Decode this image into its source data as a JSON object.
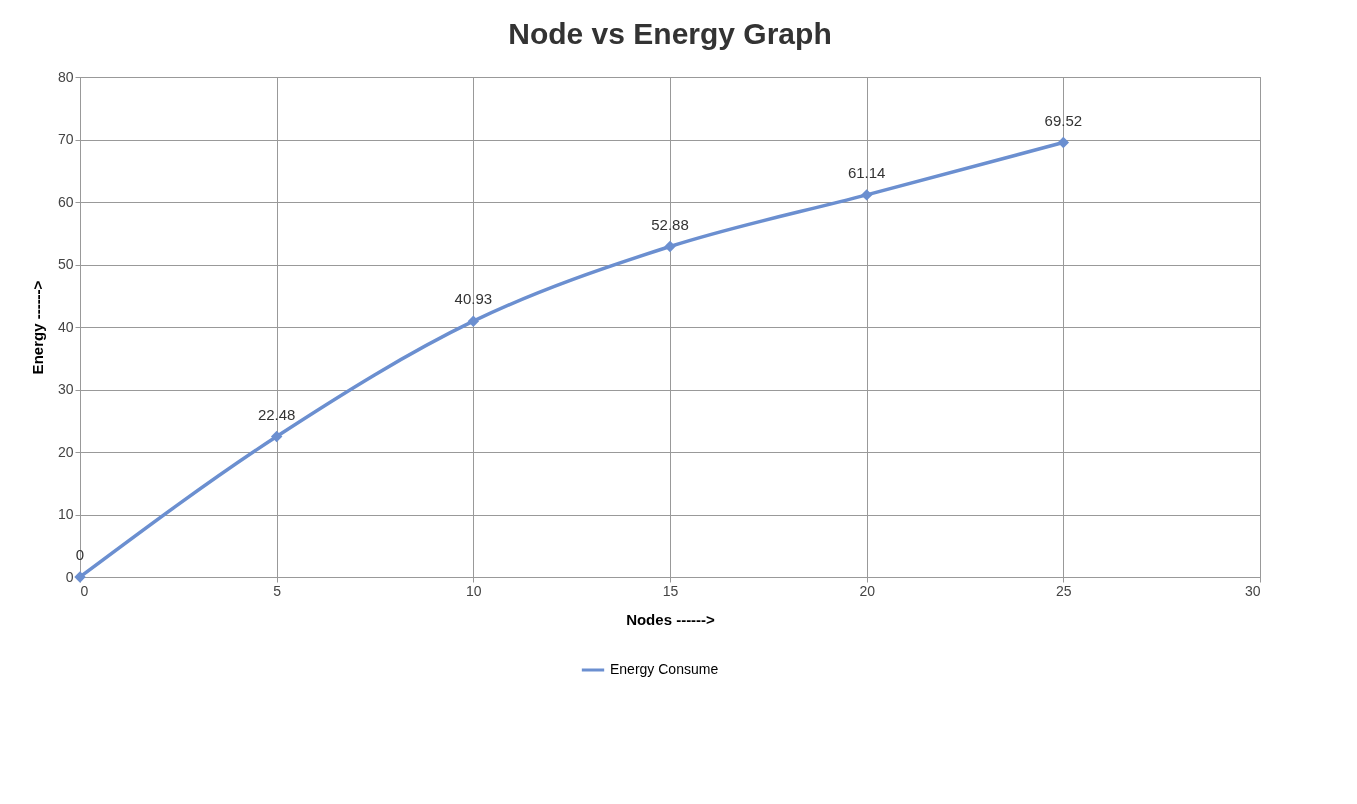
{
  "chart_data": {
    "type": "line",
    "title": "Node vs Energy Graph",
    "xlabel": "Nodes ------>",
    "ylabel": "Energy ------>",
    "x": [
      0,
      5,
      10,
      15,
      20,
      25
    ],
    "series": [
      {
        "name": "Energy Consume",
        "color": "#6b8fd0",
        "values": [
          0,
          22.48,
          40.93,
          52.88,
          61.14,
          69.52
        ]
      }
    ],
    "xlim": [
      0,
      30
    ],
    "xticks": [
      0,
      5,
      10,
      15,
      20,
      25,
      30
    ],
    "ylim": [
      0,
      80
    ],
    "yticks": [
      0,
      10,
      20,
      30,
      40,
      50,
      60,
      70,
      80
    ],
    "grid": true,
    "legend": "bottom",
    "marker": "diamond",
    "line_style": "solid",
    "data_labels": true
  }
}
